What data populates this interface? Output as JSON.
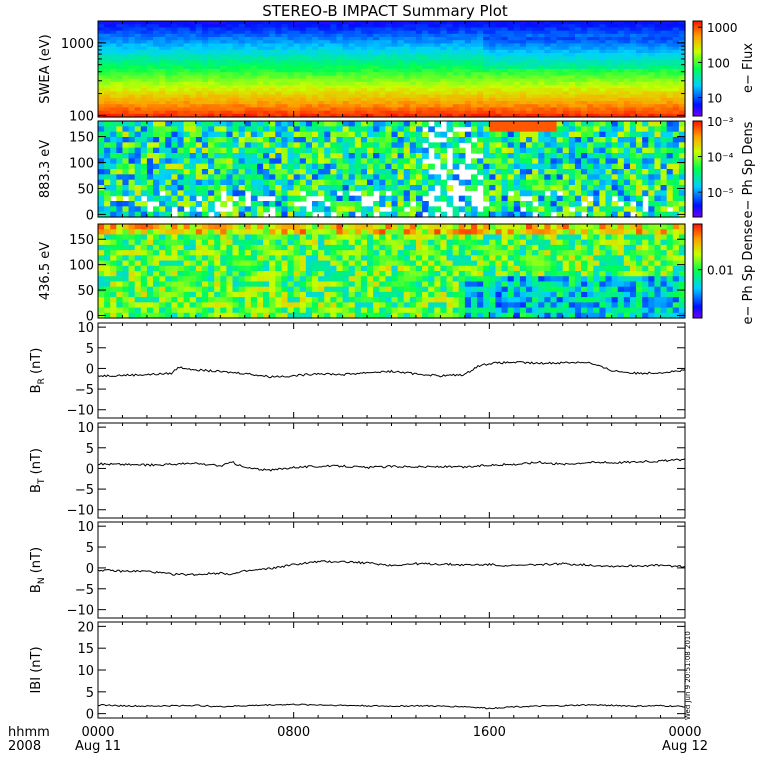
{
  "chart_data": [
    {
      "type": "heatmap",
      "title": "STEREO-B IMPACT Summary Plot",
      "ylabel": "SWEA (eV)",
      "yscale": "log",
      "ylim": [
        95,
        2000
      ],
      "yticks": [
        "100",
        "1000"
      ],
      "colorbar_label": "e− Flux",
      "colorbar_scale": "log",
      "colorbar_range": [
        3,
        1500
      ],
      "colorbar_ticks": [
        "1000",
        "100",
        "10"
      ],
      "grid": false
    },
    {
      "type": "heatmap",
      "ylabel": "883.3 eV",
      "ylim": [
        -5,
        180
      ],
      "yticks": [
        "0",
        "50",
        "100",
        "150"
      ],
      "colorbar_label": "e− Ph Sp Dens",
      "colorbar_scale": "log",
      "colorbar_range": [
        2e-06,
        0.001
      ],
      "colorbar_ticks": [
        "10⁻³",
        "10⁻⁴",
        "10⁻⁵"
      ],
      "grid": false
    },
    {
      "type": "heatmap",
      "ylabel": "436.5 eV",
      "ylim": [
        -5,
        180
      ],
      "yticks": [
        "0",
        "50",
        "100",
        "150"
      ],
      "colorbar_label": "e− Ph Sp Dense",
      "colorbar_scale": "log",
      "colorbar_range": [
        0.0015,
        0.06
      ],
      "colorbar_ticks": [
        "0.01"
      ],
      "grid": false
    },
    {
      "type": "line",
      "ylabel_main": "B",
      "ylabel_sub": "R",
      "ylabel_unit": " (nT)",
      "ylim": [
        -12,
        11
      ],
      "yticks": [
        "10",
        "5",
        "0",
        "−5",
        "−10"
      ],
      "x": [
        0,
        2,
        3,
        3.3,
        4,
        5,
        6,
        7,
        8,
        9,
        10,
        11,
        12,
        13,
        14,
        15,
        15.5,
        16,
        17,
        18,
        19,
        20,
        21,
        22,
        23,
        24
      ],
      "y": [
        -1.8,
        -1.5,
        -1.2,
        0.3,
        -0.3,
        -0.8,
        -1.2,
        -2,
        -1.8,
        -1.2,
        -1.5,
        -1,
        -0.7,
        -1.3,
        -1.8,
        -1.5,
        0.5,
        1.2,
        1.5,
        1.2,
        1.4,
        1.5,
        -0.5,
        -1.2,
        -1.0,
        -0.5
      ],
      "grid": false
    },
    {
      "type": "line",
      "ylabel_main": "B",
      "ylabel_sub": "T",
      "ylabel_unit": " (nT)",
      "ylim": [
        -12,
        11
      ],
      "yticks": [
        "10",
        "5",
        "0",
        "−5",
        "−10"
      ],
      "x": [
        0,
        1,
        2,
        3,
        4,
        5,
        5.5,
        6,
        7,
        8,
        9,
        10,
        11,
        12,
        13,
        14,
        15,
        16,
        17,
        18,
        19,
        20,
        21,
        22,
        23,
        24
      ],
      "y": [
        1.1,
        1.0,
        0.8,
        1.0,
        1.2,
        0.6,
        1.5,
        0.2,
        -0.5,
        0.3,
        0.5,
        0.6,
        0.2,
        0.5,
        0.4,
        0.4,
        0.3,
        0.8,
        1.0,
        1.5,
        1.0,
        1.5,
        1.4,
        1.6,
        1.8,
        2.2
      ],
      "grid": false
    },
    {
      "type": "line",
      "ylabel_main": "B",
      "ylabel_sub": "N",
      "ylabel_unit": " (nT)",
      "ylim": [
        -12,
        11
      ],
      "yticks": [
        "10",
        "5",
        "0",
        "−5",
        "−10"
      ],
      "x": [
        0,
        1,
        2,
        3,
        4,
        5,
        5.5,
        6,
        7,
        8,
        9,
        10,
        11,
        12,
        13,
        14,
        15,
        16,
        17,
        18,
        19,
        20,
        21,
        22,
        23,
        24
      ],
      "y": [
        -0.5,
        -0.8,
        -0.8,
        -1.5,
        -1.6,
        -1.2,
        -1.5,
        -0.8,
        -0.2,
        0.8,
        1.5,
        1.5,
        1.2,
        0.6,
        1.0,
        0.9,
        0.7,
        0.8,
        0.5,
        0.8,
        1.0,
        0.7,
        0.4,
        0.5,
        0.6,
        0.3
      ],
      "grid": false
    },
    {
      "type": "line",
      "ylabel_main": "IBI",
      "ylabel_sub": "",
      "ylabel_unit": " (nT)",
      "ylim": [
        -1,
        21
      ],
      "yticks": [
        "20",
        "15",
        "10",
        "5",
        "0"
      ],
      "x": [
        0,
        1,
        2,
        3,
        4,
        5,
        6,
        7,
        8,
        9,
        10,
        11,
        12,
        13,
        14,
        15,
        16,
        17,
        18,
        19,
        20,
        21,
        22,
        23,
        24
      ],
      "y": [
        2.0,
        1.8,
        1.7,
        1.8,
        1.9,
        1.6,
        1.8,
        2.0,
        2.1,
        2.0,
        1.9,
        1.8,
        1.7,
        1.8,
        1.7,
        1.6,
        1.2,
        1.6,
        1.7,
        1.8,
        2.0,
        1.9,
        1.7,
        1.8,
        1.6
      ],
      "grid": false
    }
  ],
  "x_axis": {
    "range_hours": [
      0,
      24
    ],
    "tick_hours": [
      0,
      8,
      16,
      24
    ],
    "tick_labels": [
      "0000",
      "0800",
      "1600",
      "0000"
    ],
    "date_labels": [
      "Aug 11",
      "",
      "",
      "Aug 12"
    ],
    "left_label_top": "hhmm",
    "left_label_bottom": "2008"
  },
  "timestamp": "Wed Jun  9 20:51:08 2010"
}
